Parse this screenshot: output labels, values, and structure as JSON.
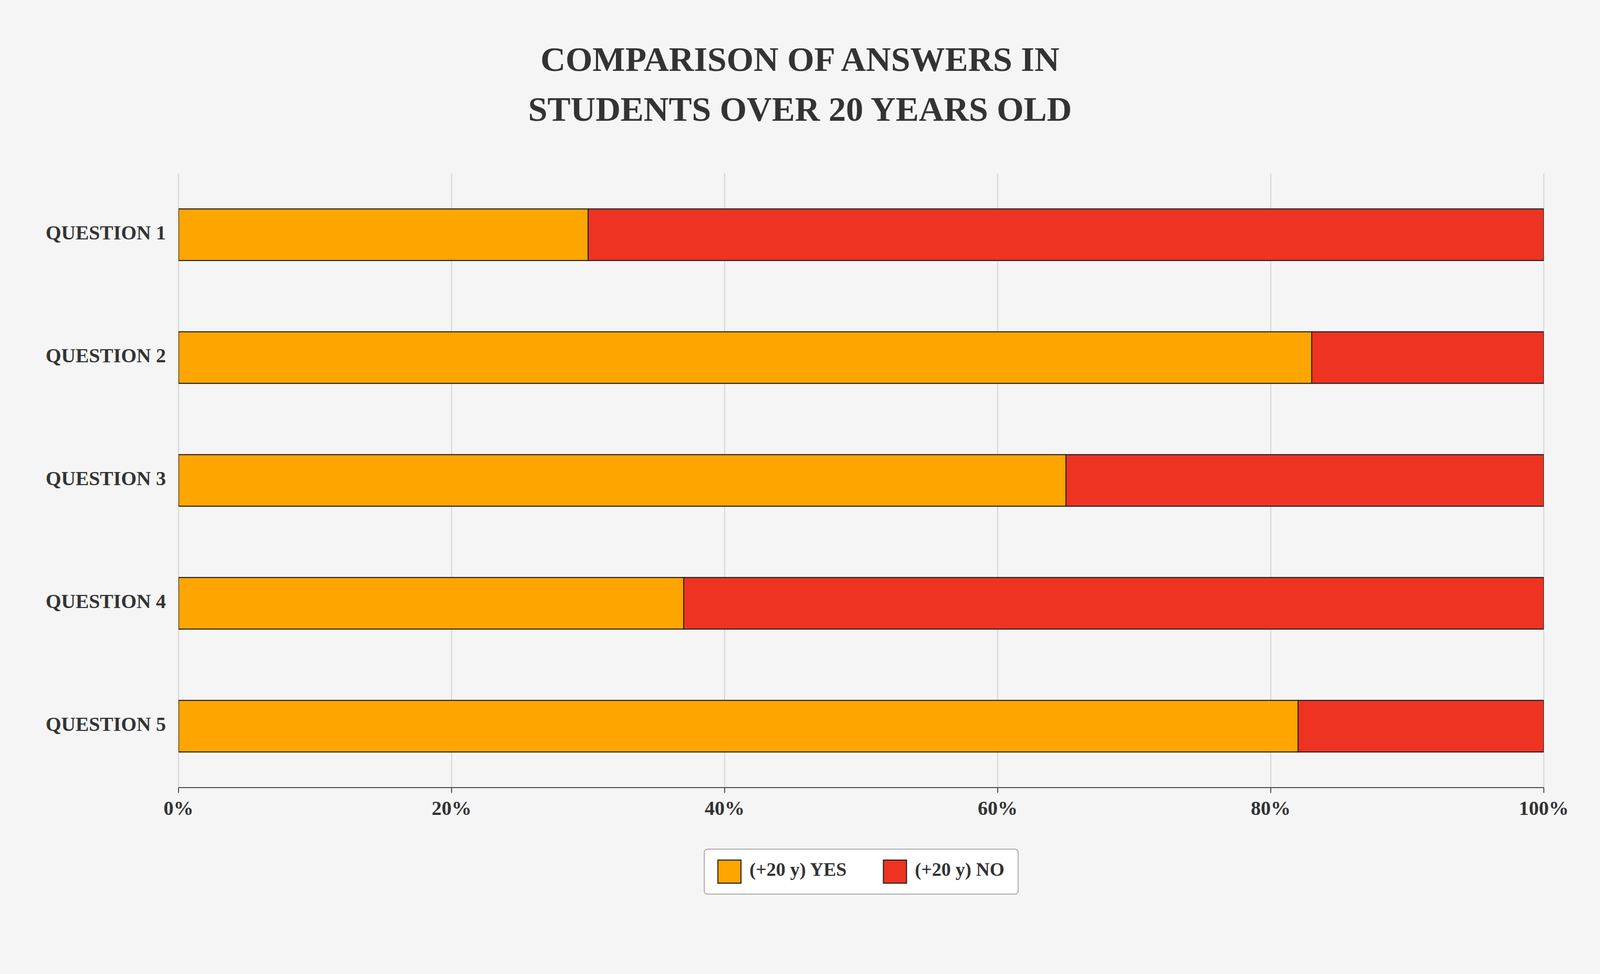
{
  "chart_data": {
    "type": "bar",
    "orientation": "horizontal",
    "stacked": true,
    "title": "COMPARISON OF ANSWERS IN",
    "subtitle": "STUDENTS OVER 20 YEARS OLD",
    "categories": [
      "QUESTION 1",
      "QUESTION 2",
      "QUESTION 3",
      "QUESTION 4",
      "QUESTION 5"
    ],
    "series": [
      {
        "name": "(+20 y) YES",
        "color": "#FFA500",
        "values": [
          30,
          83,
          65,
          37,
          82
        ]
      },
      {
        "name": "(+20 y) NO",
        "color": "#EE3322",
        "values": [
          70,
          17,
          35,
          63,
          18
        ]
      }
    ],
    "xlim": [
      0,
      100
    ],
    "xticks": [
      {
        "value": 0,
        "label": "0%"
      },
      {
        "value": 20,
        "label": "20%"
      },
      {
        "value": 40,
        "label": "40%"
      },
      {
        "value": 60,
        "label": "60%"
      },
      {
        "value": 80,
        "label": "80%"
      },
      {
        "value": 100,
        "label": "100%"
      }
    ],
    "grid": true,
    "legend": "bottom"
  }
}
